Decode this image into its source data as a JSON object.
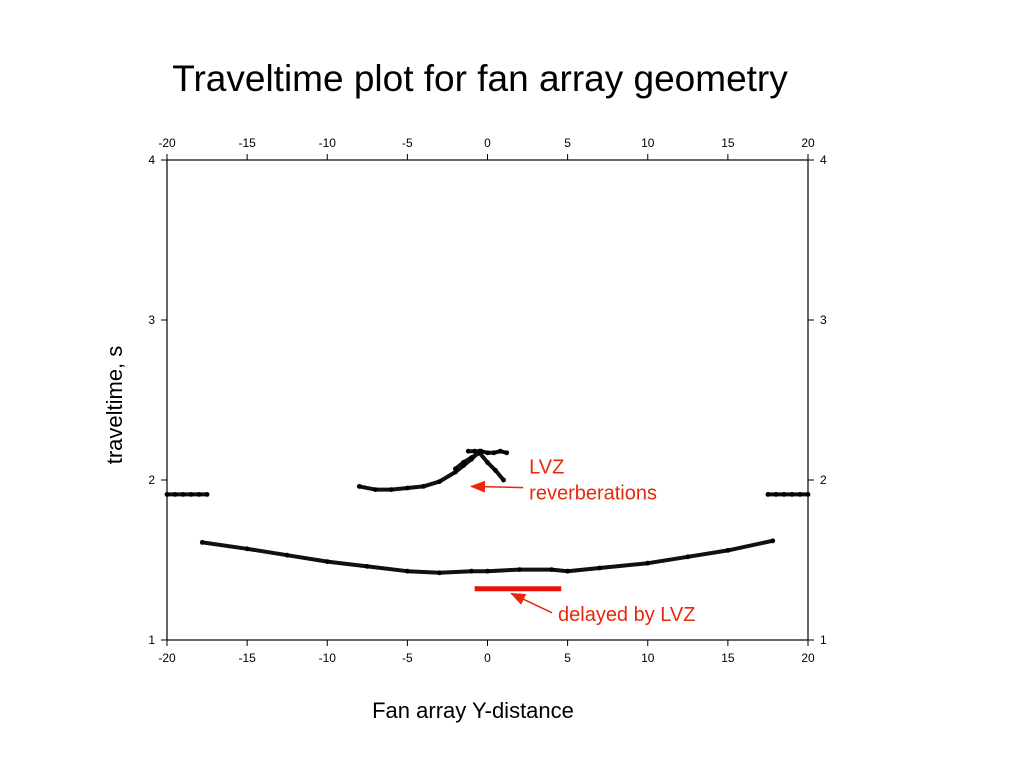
{
  "chart_data": {
    "type": "scatter",
    "title": "Traveltime plot for fan array geometry",
    "xlabel": "Fan array Y-distance",
    "ylabel": "traveltime, s",
    "xlim": [
      -20,
      20
    ],
    "ylim": [
      1,
      4
    ],
    "x_ticks": [
      -20,
      -15,
      -10,
      -5,
      0,
      5,
      10,
      15,
      20
    ],
    "y_ticks": [
      1,
      2,
      3,
      4
    ],
    "grid": false,
    "series": [
      {
        "x": [
          -17.8,
          -15,
          -12.5,
          -10,
          -7.5,
          -5,
          -3,
          -1,
          0,
          2,
          4,
          5,
          7,
          10,
          12.5,
          15,
          17.8
        ],
        "y": [
          1.61,
          1.57,
          1.53,
          1.49,
          1.46,
          1.43,
          1.42,
          1.43,
          1.43,
          1.44,
          1.44,
          1.43,
          1.45,
          1.48,
          1.52,
          1.56,
          1.62
        ]
      },
      {
        "x": [
          -8,
          -7,
          -6,
          -5,
          -4,
          -3,
          -2,
          -1.5,
          -1,
          -0.5
        ],
        "y": [
          1.96,
          1.94,
          1.94,
          1.95,
          1.96,
          1.99,
          2.05,
          2.09,
          2.13,
          2.18
        ]
      },
      {
        "x": [
          -2,
          -1.5,
          -1,
          -0.5,
          0,
          0.5,
          1
        ],
        "y": [
          2.07,
          2.11,
          2.14,
          2.17,
          2.11,
          2.06,
          2.0
        ]
      },
      {
        "x": [
          -1.2,
          -0.8,
          -0.4,
          0,
          0.4,
          0.8,
          1.2
        ],
        "y": [
          2.18,
          2.18,
          2.18,
          2.17,
          2.17,
          2.18,
          2.17
        ]
      },
      {
        "x": [
          -20,
          -19.5,
          -19,
          -18.5,
          -18,
          -17.5
        ],
        "y": [
          1.91,
          1.91,
          1.91,
          1.91,
          1.91,
          1.91
        ]
      },
      {
        "x": [
          17.5,
          18,
          18.5,
          19,
          19.5,
          20
        ],
        "y": [
          1.91,
          1.91,
          1.91,
          1.91,
          1.91,
          1.91
        ]
      }
    ],
    "red_bar": {
      "x": [
        -0.8,
        4.6
      ],
      "y": 1.32
    },
    "annotations": [
      {
        "lines": [
          "LVZ",
          "reverberations"
        ],
        "color": "#e8280b",
        "text_pos": [
          2.6,
          2.04
        ],
        "arrow_to": [
          -1,
          1.96
        ]
      },
      {
        "lines": [
          "delayed by LVZ"
        ],
        "color": "#e8280b",
        "text_pos": [
          4.4,
          1.12
        ],
        "arrow_to": [
          1.5,
          1.29
        ]
      }
    ]
  }
}
